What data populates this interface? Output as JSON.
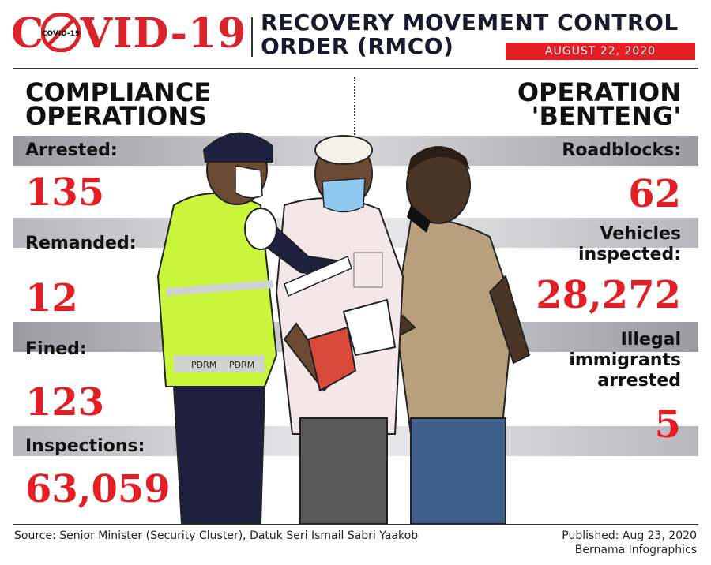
{
  "header": {
    "logo_text": "COVID-19",
    "logo_badge": "COVID-19",
    "title_line1": "RECOVERY MOVEMENT CONTROL",
    "title_line2": "ORDER (RMCO)",
    "date": "AUGUST 22, 2020"
  },
  "left": {
    "heading_line1": "COMPLIANCE",
    "heading_line2": "OPERATIONS",
    "stats": [
      {
        "label": "Arrested:",
        "value": "135"
      },
      {
        "label": "Remanded:",
        "value": "12"
      },
      {
        "label": "Fined:",
        "value": "123"
      },
      {
        "label": "Inspections:",
        "value": "63,059"
      }
    ]
  },
  "right": {
    "heading_line1": "OPERATION",
    "heading_line2": "'BENTENG'",
    "stats": [
      {
        "label_line1": "Roadblocks:",
        "label_line2": "",
        "label_line3": "",
        "value": "62"
      },
      {
        "label_line1": "Vehicles",
        "label_line2": "inspected:",
        "label_line3": "",
        "value": "28,272"
      },
      {
        "label_line1": "Illegal",
        "label_line2": "immigrants",
        "label_line3": "arrested",
        "value": "5"
      }
    ]
  },
  "vest_text": "PDRM",
  "footer": {
    "source": "Source: Senior Minister (Security Cluster), Datuk Seri Ismail Sabri Yaakob",
    "published": "Published: Aug 23, 2020",
    "credit": "Bernama Infographics"
  },
  "colors": {
    "accent_red": "#e31e24",
    "navy": "#1a1a2e",
    "vest": "#c9f53a"
  }
}
